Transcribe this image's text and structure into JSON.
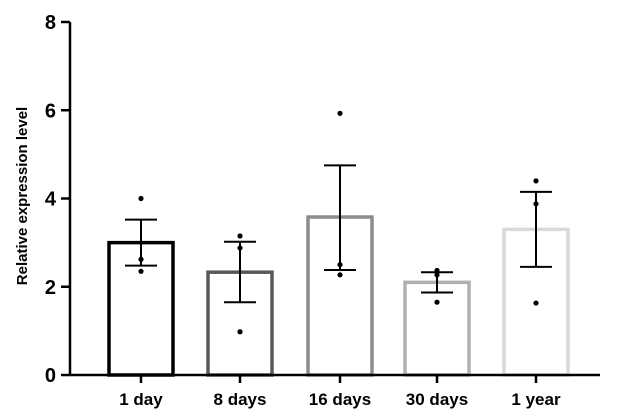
{
  "chart_data": {
    "type": "bar",
    "title": "",
    "xlabel": "",
    "ylabel": "Relative expression level",
    "ylim": [
      0,
      8
    ],
    "yticks": [
      0,
      2,
      4,
      6,
      8
    ],
    "grid": false,
    "categories": [
      "1 day",
      "8 days",
      "16 days",
      "30 days",
      "1 year"
    ],
    "values": [
      3.0,
      2.33,
      3.58,
      2.1,
      3.3
    ],
    "error_low": [
      2.48,
      1.65,
      2.38,
      1.87,
      2.45
    ],
    "error_high": [
      3.52,
      3.02,
      4.75,
      2.33,
      4.15
    ],
    "points": [
      [
        4.0,
        2.62,
        2.35
      ],
      [
        3.15,
        2.88,
        0.98
      ],
      [
        5.93,
        2.5,
        2.27
      ],
      [
        2.37,
        2.27,
        1.65
      ],
      [
        4.4,
        3.88,
        1.63
      ]
    ],
    "bar_colors": [
      "#000000",
      "#595959",
      "#8c8c8c",
      "#b0b0b0",
      "#d9d9d9"
    ]
  }
}
